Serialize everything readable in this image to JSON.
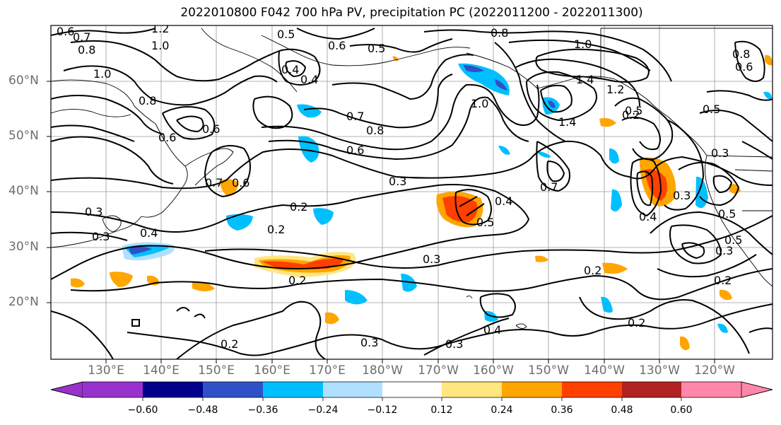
{
  "title": "2022010800 F042 700 hPa PV, precipitation PC (2022011200 - 2022011300)",
  "lat_labels": [
    "60°N",
    "50°N",
    "40°N",
    "30°N",
    "20°N"
  ],
  "lon_labels": [
    "130°E",
    "140°E",
    "150°E",
    "160°E",
    "170°E",
    "180°W",
    "170°W",
    "160°W",
    "150°W",
    "140°W",
    "130°W",
    "120°W"
  ],
  "colorbar": {
    "labels": [
      "−0.60",
      "−0.48",
      "−0.36",
      "−0.24",
      "−0.12",
      "0.12",
      "0.24",
      "0.36",
      "0.48",
      "0.60"
    ],
    "colors": [
      "#9932cc",
      "#00008b",
      "#3050c8",
      "#00bfff",
      "#b0e0ff",
      "#ffffff",
      "#ffe680",
      "#ffa500",
      "#ff4000",
      "#b22222",
      "#ff88aa"
    ]
  },
  "contour_labels": [
    "1.2",
    "0.7",
    "0.8",
    "1.0",
    "0.6",
    "0.5",
    "0.6",
    "0.5",
    "0.8",
    "1.0",
    "0.4",
    "0.4",
    "1.0",
    "0.8",
    "1.0",
    "1.4",
    "1.4",
    "1.2",
    "0.8",
    "0.6",
    "0.7",
    "0.8",
    "0.6",
    "0.5",
    "0.3",
    "0.7",
    "0.6",
    "0.5",
    "0.3",
    "0.2",
    "0.4",
    "0.2",
    "0.4",
    "0.3",
    "0.3",
    "0.2",
    "0.5",
    "0.2",
    "0.3",
    "0.2",
    "0.3",
    "0.4",
    "0.2",
    "0.2",
    "0.3",
    "0.5",
    "0.5",
    "0.3",
    "0.6",
    "0.6",
    "0.7",
    "0.4",
    "0.2",
    "0.3"
  ]
}
